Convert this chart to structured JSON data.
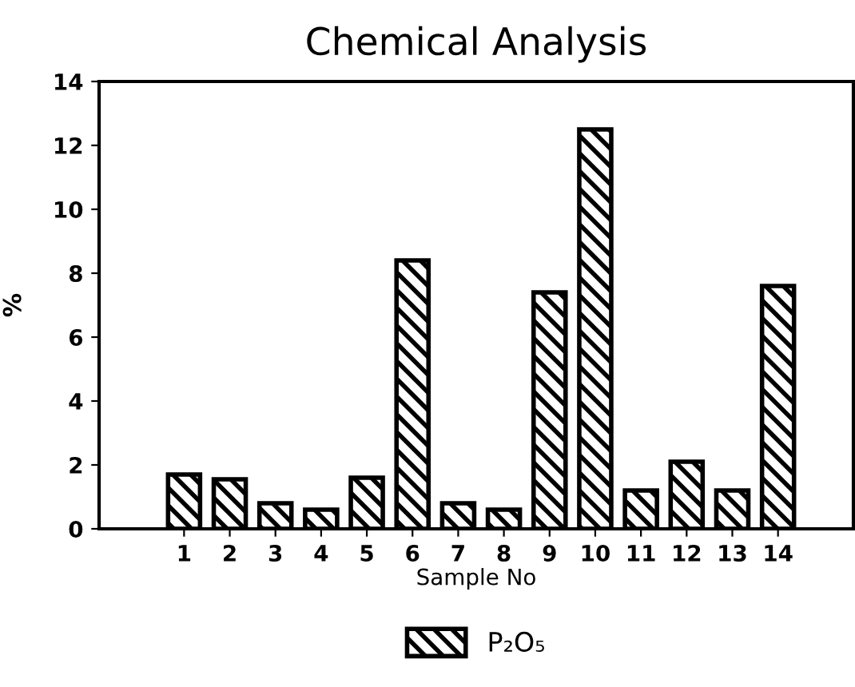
{
  "chart_data": {
    "type": "bar",
    "title": "Chemical Analysis",
    "xlabel": "Sample No",
    "ylabel": "%",
    "categories": [
      "1",
      "2",
      "3",
      "4",
      "5",
      "6",
      "7",
      "8",
      "9",
      "10",
      "11",
      "12",
      "13",
      "14"
    ],
    "series": [
      {
        "name": "P₂O₅",
        "color": "#000000",
        "values": [
          1.7,
          1.55,
          0.8,
          0.6,
          1.6,
          8.4,
          0.8,
          0.6,
          7.4,
          12.5,
          1.2,
          2.1,
          1.2,
          7.6
        ]
      }
    ],
    "ylim": [
      0,
      14
    ],
    "yticks": [
      0,
      2,
      4,
      6,
      8,
      10,
      12,
      14
    ],
    "grid": false,
    "legend": "bottom"
  }
}
